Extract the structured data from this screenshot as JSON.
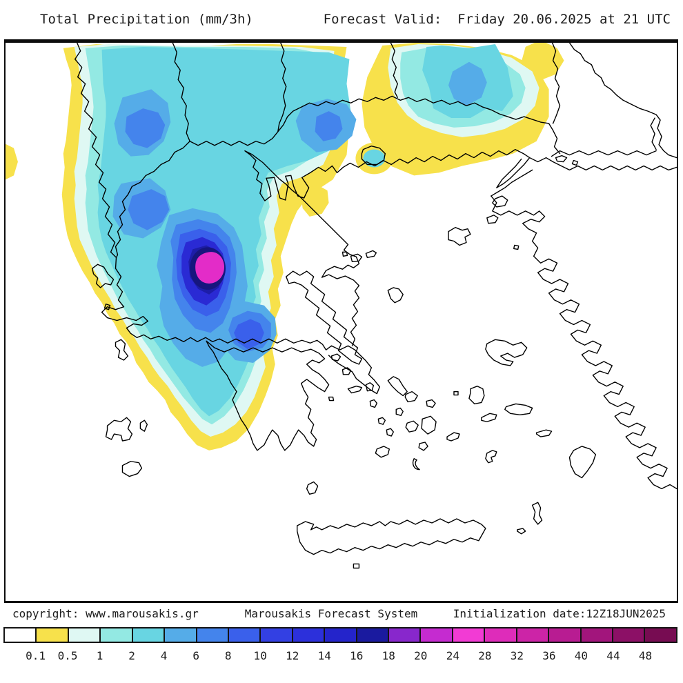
{
  "header": {
    "title": "Total Precipitation (mm/3h)",
    "forecast_valid": "Forecast Valid:  Friday 20.06.2025 at 21 UTC"
  },
  "footer": {
    "copyright": "copyright: www.marousakis.gr",
    "system_name": "Marousakis Forecast System",
    "initialization": "Initialization date:12Z18JUN2025"
  },
  "colorbar": {
    "unit": "mm/3h",
    "labels": [
      "0.1",
      "0.5",
      "1",
      "2",
      "4",
      "6",
      "8",
      "10",
      "12",
      "14",
      "16",
      "18",
      "20",
      "24",
      "28",
      "32",
      "36",
      "40",
      "44",
      "48"
    ],
    "colors": [
      "#ffffff",
      "#f7e14b",
      "#dff8f3",
      "#93e9e3",
      "#68d5e2",
      "#55ace8",
      "#4484ec",
      "#3a60eb",
      "#3340e3",
      "#2c30db",
      "#2424cb",
      "#1a1a9f",
      "#8827cc",
      "#c52bd0",
      "#f23bd4",
      "#de2cba",
      "#cc24a7",
      "#b81c92",
      "#a2157c",
      "#8c1066",
      "#770c52"
    ]
  }
}
